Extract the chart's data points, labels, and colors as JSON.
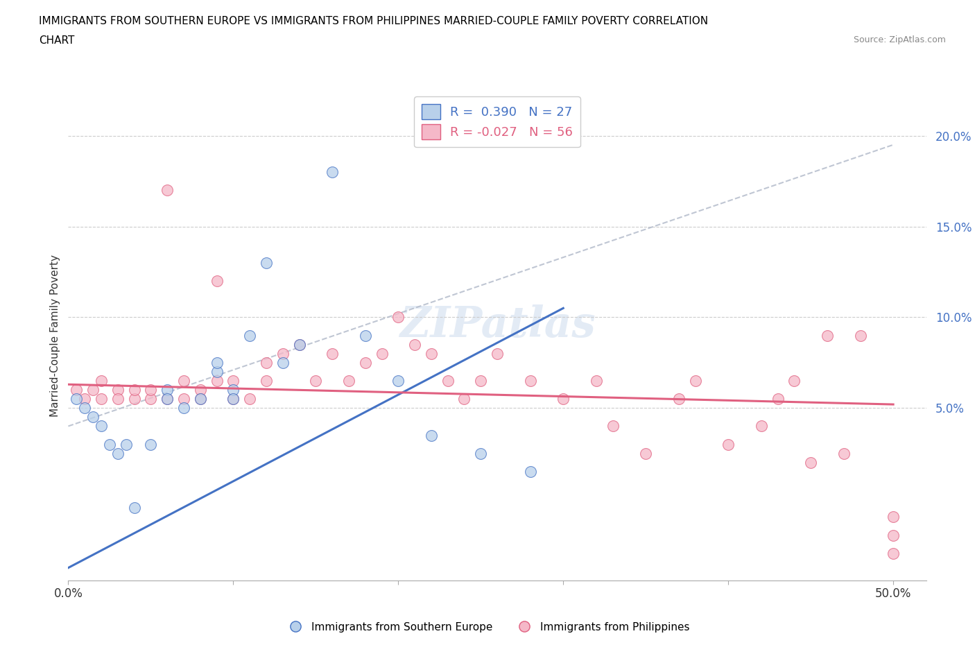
{
  "title_line1": "IMMIGRANTS FROM SOUTHERN EUROPE VS IMMIGRANTS FROM PHILIPPINES MARRIED-COUPLE FAMILY POVERTY CORRELATION",
  "title_line2": "CHART",
  "source": "Source: ZipAtlas.com",
  "ylabel": "Married-Couple Family Poverty",
  "r_blue": 0.39,
  "n_blue": 27,
  "r_pink": -0.027,
  "n_pink": 56,
  "blue_color": "#b8d0ea",
  "pink_color": "#f5b8c8",
  "blue_line_color": "#4472c4",
  "pink_line_color": "#e06080",
  "yticks": [
    0.05,
    0.1,
    0.15,
    0.2
  ],
  "ytick_labels": [
    "5.0%",
    "10.0%",
    "15.0%",
    "20.0%"
  ],
  "xlim": [
    0.0,
    0.52
  ],
  "ylim": [
    -0.045,
    0.225
  ],
  "blue_scatter_x": [
    0.005,
    0.01,
    0.015,
    0.02,
    0.025,
    0.03,
    0.035,
    0.04,
    0.05,
    0.06,
    0.06,
    0.07,
    0.08,
    0.09,
    0.09,
    0.1,
    0.1,
    0.11,
    0.12,
    0.13,
    0.14,
    0.16,
    0.18,
    0.2,
    0.22,
    0.25,
    0.28
  ],
  "blue_scatter_y": [
    0.055,
    0.05,
    0.045,
    0.04,
    0.03,
    0.025,
    0.03,
    -0.005,
    0.03,
    0.06,
    0.055,
    0.05,
    0.055,
    0.07,
    0.075,
    0.06,
    0.055,
    0.09,
    0.13,
    0.075,
    0.085,
    0.18,
    0.09,
    0.065,
    0.035,
    0.025,
    0.015
  ],
  "pink_scatter_x": [
    0.005,
    0.01,
    0.015,
    0.02,
    0.02,
    0.03,
    0.03,
    0.04,
    0.04,
    0.05,
    0.05,
    0.06,
    0.06,
    0.07,
    0.07,
    0.08,
    0.08,
    0.09,
    0.09,
    0.1,
    0.1,
    0.11,
    0.12,
    0.12,
    0.13,
    0.14,
    0.15,
    0.16,
    0.17,
    0.18,
    0.19,
    0.2,
    0.21,
    0.22,
    0.23,
    0.24,
    0.25,
    0.26,
    0.28,
    0.3,
    0.32,
    0.33,
    0.35,
    0.37,
    0.38,
    0.4,
    0.42,
    0.43,
    0.44,
    0.45,
    0.46,
    0.47,
    0.48,
    0.5,
    0.5,
    0.5
  ],
  "pink_scatter_y": [
    0.06,
    0.055,
    0.06,
    0.055,
    0.065,
    0.06,
    0.055,
    0.055,
    0.06,
    0.055,
    0.06,
    0.055,
    0.17,
    0.055,
    0.065,
    0.06,
    0.055,
    0.065,
    0.12,
    0.055,
    0.065,
    0.055,
    0.065,
    0.075,
    0.08,
    0.085,
    0.065,
    0.08,
    0.065,
    0.075,
    0.08,
    0.1,
    0.085,
    0.08,
    0.065,
    0.055,
    0.065,
    0.08,
    0.065,
    0.055,
    0.065,
    0.04,
    0.025,
    0.055,
    0.065,
    0.03,
    0.04,
    0.055,
    0.065,
    0.02,
    0.09,
    0.025,
    0.09,
    -0.03,
    -0.01,
    -0.02
  ],
  "blue_trend_x0": 0.0,
  "blue_trend_y0": -0.038,
  "blue_trend_x1": 0.3,
  "blue_trend_y1": 0.105,
  "pink_trend_x0": 0.0,
  "pink_trend_y0": 0.063,
  "pink_trend_x1": 0.5,
  "pink_trend_y1": 0.052,
  "dash_trend_x0": 0.0,
  "dash_trend_y0": 0.04,
  "dash_trend_x1": 0.5,
  "dash_trend_y1": 0.195,
  "watermark": "ZIPatlas"
}
